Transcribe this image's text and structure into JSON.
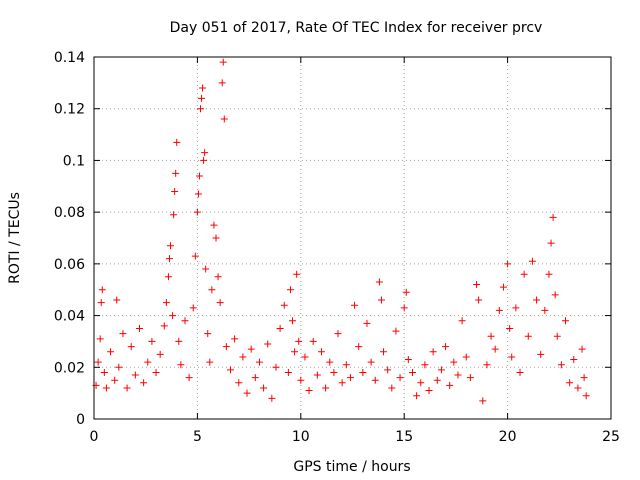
{
  "chart_data": {
    "type": "scatter",
    "title": "Day 051 of 2017, Rate Of TEC Index for receiver prcv",
    "xlabel": "GPS time / hours",
    "ylabel": "ROTI / TECUs",
    "xlim": [
      0,
      25
    ],
    "ylim": [
      0,
      0.14
    ],
    "xticks": [
      0,
      5,
      10,
      15,
      20,
      25
    ],
    "xtick_labels": [
      "0",
      "5",
      "10",
      "15",
      "20",
      "25"
    ],
    "yticks": [
      0,
      0.02,
      0.04,
      0.06,
      0.08,
      0.1,
      0.12,
      0.14
    ],
    "ytick_labels": [
      "0",
      "0.02",
      "0.04",
      "0.06",
      "0.08",
      "0.1",
      "0.12",
      "0.14"
    ],
    "grid": true,
    "marker": "+",
    "color": "#ff0000",
    "series": [
      {
        "name": "ROTI",
        "points": [
          [
            0.1,
            0.013
          ],
          [
            0.2,
            0.022
          ],
          [
            0.3,
            0.031
          ],
          [
            0.35,
            0.045
          ],
          [
            0.4,
            0.05
          ],
          [
            0.5,
            0.018
          ],
          [
            0.6,
            0.012
          ],
          [
            0.8,
            0.026
          ],
          [
            1.0,
            0.015
          ],
          [
            1.1,
            0.046
          ],
          [
            1.2,
            0.02
          ],
          [
            1.4,
            0.033
          ],
          [
            1.6,
            0.012
          ],
          [
            1.8,
            0.028
          ],
          [
            2.0,
            0.017
          ],
          [
            2.2,
            0.035
          ],
          [
            2.4,
            0.014
          ],
          [
            2.6,
            0.022
          ],
          [
            2.8,
            0.03
          ],
          [
            3.0,
            0.018
          ],
          [
            3.2,
            0.025
          ],
          [
            3.4,
            0.036
          ],
          [
            3.5,
            0.045
          ],
          [
            3.6,
            0.055
          ],
          [
            3.65,
            0.062
          ],
          [
            3.7,
            0.067
          ],
          [
            3.8,
            0.04
          ],
          [
            3.85,
            0.079
          ],
          [
            3.9,
            0.088
          ],
          [
            3.95,
            0.095
          ],
          [
            4.0,
            0.107
          ],
          [
            4.1,
            0.03
          ],
          [
            4.2,
            0.021
          ],
          [
            4.4,
            0.038
          ],
          [
            4.6,
            0.016
          ],
          [
            4.8,
            0.043
          ],
          [
            4.9,
            0.063
          ],
          [
            5.0,
            0.08
          ],
          [
            5.05,
            0.087
          ],
          [
            5.1,
            0.094
          ],
          [
            5.15,
            0.12
          ],
          [
            5.2,
            0.124
          ],
          [
            5.25,
            0.128
          ],
          [
            5.3,
            0.1
          ],
          [
            5.35,
            0.103
          ],
          [
            5.4,
            0.058
          ],
          [
            5.5,
            0.033
          ],
          [
            5.6,
            0.022
          ],
          [
            5.7,
            0.05
          ],
          [
            5.8,
            0.075
          ],
          [
            5.9,
            0.07
          ],
          [
            6.0,
            0.055
          ],
          [
            6.1,
            0.045
          ],
          [
            6.2,
            0.13
          ],
          [
            6.25,
            0.138
          ],
          [
            6.3,
            0.116
          ],
          [
            6.4,
            0.028
          ],
          [
            6.6,
            0.019
          ],
          [
            6.8,
            0.031
          ],
          [
            7.0,
            0.014
          ],
          [
            7.2,
            0.024
          ],
          [
            7.4,
            0.01
          ],
          [
            7.6,
            0.027
          ],
          [
            7.8,
            0.016
          ],
          [
            8.0,
            0.022
          ],
          [
            8.2,
            0.012
          ],
          [
            8.4,
            0.029
          ],
          [
            8.6,
            0.008
          ],
          [
            8.8,
            0.02
          ],
          [
            9.0,
            0.035
          ],
          [
            9.2,
            0.044
          ],
          [
            9.4,
            0.018
          ],
          [
            9.5,
            0.05
          ],
          [
            9.6,
            0.038
          ],
          [
            9.7,
            0.026
          ],
          [
            9.8,
            0.056
          ],
          [
            9.9,
            0.03
          ],
          [
            10.0,
            0.015
          ],
          [
            10.2,
            0.024
          ],
          [
            10.4,
            0.011
          ],
          [
            10.6,
            0.03
          ],
          [
            10.8,
            0.017
          ],
          [
            11.0,
            0.026
          ],
          [
            11.2,
            0.012
          ],
          [
            11.4,
            0.022
          ],
          [
            11.6,
            0.018
          ],
          [
            11.8,
            0.033
          ],
          [
            12.0,
            0.014
          ],
          [
            12.2,
            0.021
          ],
          [
            12.4,
            0.016
          ],
          [
            12.6,
            0.044
          ],
          [
            12.8,
            0.028
          ],
          [
            13.0,
            0.018
          ],
          [
            13.2,
            0.037
          ],
          [
            13.4,
            0.022
          ],
          [
            13.6,
            0.015
          ],
          [
            13.8,
            0.053
          ],
          [
            13.9,
            0.046
          ],
          [
            14.0,
            0.026
          ],
          [
            14.2,
            0.019
          ],
          [
            14.4,
            0.012
          ],
          [
            14.6,
            0.034
          ],
          [
            14.8,
            0.016
          ],
          [
            15.0,
            0.043
          ],
          [
            15.1,
            0.049
          ],
          [
            15.2,
            0.023
          ],
          [
            15.4,
            0.018
          ],
          [
            15.6,
            0.009
          ],
          [
            15.8,
            0.014
          ],
          [
            16.0,
            0.021
          ],
          [
            16.2,
            0.011
          ],
          [
            16.4,
            0.026
          ],
          [
            16.6,
            0.015
          ],
          [
            16.8,
            0.019
          ],
          [
            17.0,
            0.028
          ],
          [
            17.2,
            0.013
          ],
          [
            17.4,
            0.022
          ],
          [
            17.6,
            0.017
          ],
          [
            17.8,
            0.038
          ],
          [
            18.0,
            0.024
          ],
          [
            18.2,
            0.016
          ],
          [
            18.5,
            0.052
          ],
          [
            18.6,
            0.046
          ],
          [
            18.8,
            0.007
          ],
          [
            19.0,
            0.021
          ],
          [
            19.2,
            0.032
          ],
          [
            19.4,
            0.027
          ],
          [
            19.6,
            0.042
          ],
          [
            19.8,
            0.051
          ],
          [
            20.0,
            0.06
          ],
          [
            20.1,
            0.035
          ],
          [
            20.2,
            0.024
          ],
          [
            20.4,
            0.043
          ],
          [
            20.6,
            0.018
          ],
          [
            20.8,
            0.056
          ],
          [
            21.0,
            0.032
          ],
          [
            21.2,
            0.061
          ],
          [
            21.4,
            0.046
          ],
          [
            21.6,
            0.025
          ],
          [
            21.8,
            0.042
          ],
          [
            22.0,
            0.056
          ],
          [
            22.1,
            0.068
          ],
          [
            22.2,
            0.078
          ],
          [
            22.3,
            0.048
          ],
          [
            22.4,
            0.032
          ],
          [
            22.6,
            0.021
          ],
          [
            22.8,
            0.038
          ],
          [
            23.0,
            0.014
          ],
          [
            23.2,
            0.023
          ],
          [
            23.4,
            0.012
          ],
          [
            23.6,
            0.027
          ],
          [
            23.7,
            0.016
          ],
          [
            23.8,
            0.009
          ]
        ]
      }
    ]
  }
}
